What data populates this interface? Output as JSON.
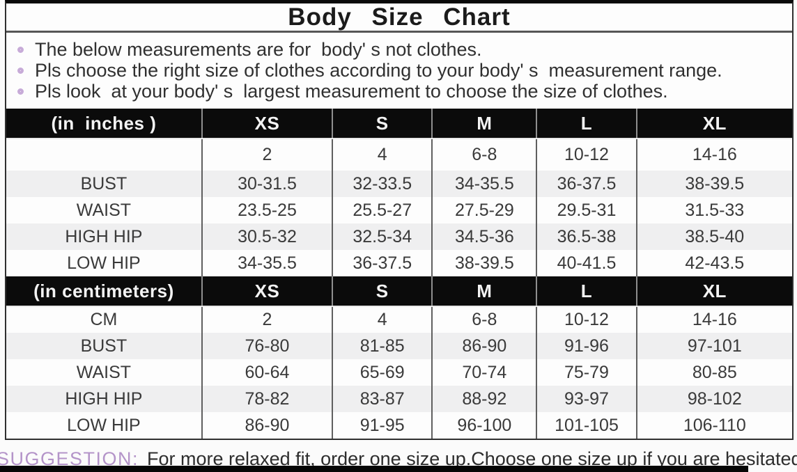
{
  "title": "Body Size Chart",
  "notes": [
    "The below measurements are for  body' s not clothes.",
    "Pls choose the right size of clothes according to your body' s  measurement range.",
    "Pls look  at your body' s  largest measurement to choose the size of clothes."
  ],
  "tables": [
    {
      "unit_label": "(in  inches )",
      "columns": [
        "XS",
        "S",
        "M",
        "L",
        "XL"
      ],
      "rows": [
        {
          "label": "",
          "values": [
            "2",
            "4",
            "6-8",
            "10-12",
            "14-16"
          ]
        },
        {
          "label": "BUST",
          "values": [
            "30-31.5",
            "32-33.5",
            "34-35.5",
            "36-37.5",
            "38-39.5"
          ]
        },
        {
          "label": "WAIST",
          "values": [
            "23.5-25",
            "25.5-27",
            "27.5-29",
            "29.5-31",
            "31.5-33"
          ]
        },
        {
          "label": "HIGH HIP",
          "values": [
            "30.5-32",
            "32.5-34",
            "34.5-36",
            "36.5-38",
            "38.5-40"
          ]
        },
        {
          "label": "LOW HIP",
          "values": [
            "34-35.5",
            "36-37.5",
            "38-39.5",
            "40-41.5",
            "42-43.5"
          ]
        }
      ]
    },
    {
      "unit_label": "(in centimeters)",
      "columns": [
        "XS",
        "S",
        "M",
        "L",
        "XL"
      ],
      "rows": [
        {
          "label": "CM",
          "values": [
            "2",
            "4",
            "6-8",
            "10-12",
            "14-16"
          ]
        },
        {
          "label": "BUST",
          "values": [
            "76-80",
            "81-85",
            "86-90",
            "91-96",
            "97-101"
          ]
        },
        {
          "label": "WAIST",
          "values": [
            "60-64",
            "65-69",
            "70-74",
            "75-79",
            "80-85"
          ]
        },
        {
          "label": "HIGH HIP",
          "values": [
            "78-82",
            "83-87",
            "88-92",
            "93-97",
            "98-102"
          ]
        },
        {
          "label": "LOW HIP",
          "values": [
            "86-90",
            "91-95",
            "96-100",
            "101-105",
            "106-110"
          ]
        }
      ]
    }
  ],
  "suggestion": {
    "label": "SUGGESTION:",
    "text": "For more relaxed fit, order one size up.Choose one size up if you are hesitated between two sizes"
  },
  "colors": {
    "header-bg": "#0b0b0b",
    "header-text": "#f3f3f3",
    "alt-row": "#efeff0",
    "bullet-purple": "#c7abd8",
    "suggestion-purple": "#b494c9",
    "body-text": "#3a3a3a"
  }
}
